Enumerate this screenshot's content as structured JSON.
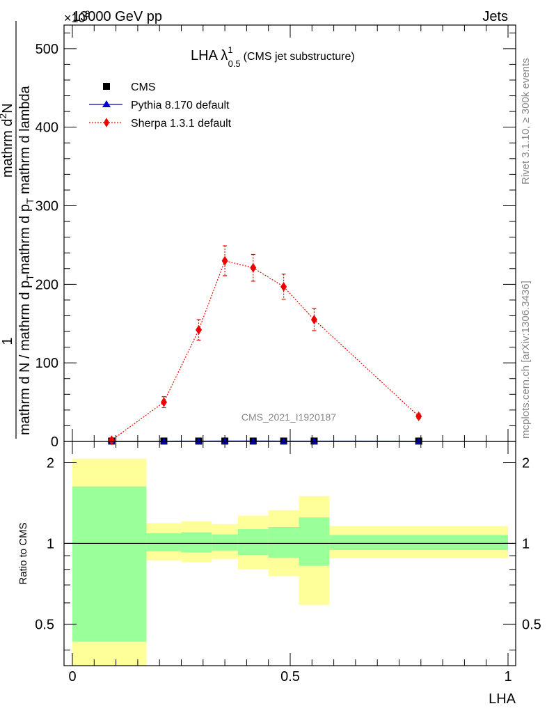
{
  "header": {
    "left": "13000 GeV pp",
    "right": "Jets"
  },
  "side_labels": {
    "rivet": "Rivet 3.1.10, ≥ 300k events",
    "mcplots": "mcplots.cern.ch [arXiv:1306.3436]"
  },
  "plot_title": {
    "main": "LHA λ",
    "sup": "1",
    "sub": "0.5",
    "note": "(CMS jet substructure)"
  },
  "watermark": "CMS_2021_I1920187",
  "legend": [
    {
      "label": "CMS",
      "marker": "square",
      "color": "#000000"
    },
    {
      "label": "Pythia 8.170 default",
      "marker": "triangle",
      "color": "#0000cc"
    },
    {
      "label": "Sherpa 1.3.1 default",
      "marker": "diamond",
      "color": "#ee0000"
    }
  ],
  "y_axis_upper": {
    "title_numerator": "mathrm d^{2}N",
    "title_denominator": "mathrm d p_{T} mathrm d lambda",
    "title_prefix": "1",
    "title_prefix_den": "mathrm d N / mathrm d p_{T}",
    "exponent_label": "×10^{3}",
    "ticks": [
      "0",
      "100",
      "200",
      "300",
      "400",
      "500"
    ]
  },
  "y_axis_lower": {
    "title": "Ratio to CMS",
    "ticks": [
      "0.5",
      "1",
      "2"
    ]
  },
  "x_axis": {
    "title": "LHA",
    "ticks": [
      "0",
      "0.5",
      "1"
    ]
  },
  "chart_data": [
    {
      "type": "line",
      "panel": "main",
      "xlim": [
        0,
        1
      ],
      "ylim": [
        0,
        530
      ],
      "y_scale_factor": 1000,
      "series": [
        {
          "name": "CMS",
          "x": [
            0.09,
            0.21,
            0.29,
            0.35,
            0.415,
            0.485,
            0.555,
            0.795
          ],
          "y": [
            0.5,
            0.5,
            0.5,
            0.5,
            0.5,
            0.5,
            0.5,
            0.5
          ]
        },
        {
          "name": "Pythia 8.170 default",
          "x": [
            0.09,
            0.21,
            0.29,
            0.35,
            0.415,
            0.485,
            0.555,
            0.795
          ],
          "y": [
            0.3,
            0.4,
            0.5,
            0.6,
            0.6,
            0.5,
            0.5,
            0.3
          ]
        },
        {
          "name": "Sherpa 1.3.1 default",
          "x": [
            0.09,
            0.21,
            0.29,
            0.35,
            0.415,
            0.485,
            0.555,
            0.795
          ],
          "y": [
            1.5,
            50,
            142,
            230,
            221,
            197,
            155,
            32
          ],
          "yerr": [
            1,
            7,
            13,
            19,
            17,
            16,
            14,
            3
          ]
        }
      ]
    },
    {
      "type": "area",
      "panel": "ratio",
      "ylabel": "Ratio to CMS",
      "y_scale": "log",
      "ylim": [
        0.35,
        2.4
      ],
      "reference_line": 1,
      "bins": [
        {
          "x_lo": 0.0,
          "x_hi": 0.17,
          "inner_lo": 0.43,
          "inner_hi": 1.63,
          "outer_lo": 0.3,
          "outer_hi": 2.07
        },
        {
          "x_lo": 0.17,
          "x_hi": 0.25,
          "inner_lo": 0.935,
          "inner_hi": 1.09,
          "outer_lo": 0.865,
          "outer_hi": 1.19
        },
        {
          "x_lo": 0.25,
          "x_hi": 0.32,
          "inner_lo": 0.925,
          "inner_hi": 1.1,
          "outer_lo": 0.85,
          "outer_hi": 1.21
        },
        {
          "x_lo": 0.32,
          "x_hi": 0.38,
          "inner_lo": 0.94,
          "inner_hi": 1.08,
          "outer_lo": 0.875,
          "outer_hi": 1.18
        },
        {
          "x_lo": 0.38,
          "x_hi": 0.45,
          "inner_lo": 0.905,
          "inner_hi": 1.13,
          "outer_lo": 0.8,
          "outer_hi": 1.27
        },
        {
          "x_lo": 0.45,
          "x_hi": 0.52,
          "inner_lo": 0.885,
          "inner_hi": 1.15,
          "outer_lo": 0.755,
          "outer_hi": 1.33
        },
        {
          "x_lo": 0.52,
          "x_hi": 0.59,
          "inner_lo": 0.825,
          "inner_hi": 1.25,
          "outer_lo": 0.59,
          "outer_hi": 1.5
        },
        {
          "x_lo": 0.59,
          "x_hi": 1.0,
          "inner_lo": 0.945,
          "inner_hi": 1.075,
          "outer_lo": 0.88,
          "outer_hi": 1.16
        }
      ]
    }
  ]
}
